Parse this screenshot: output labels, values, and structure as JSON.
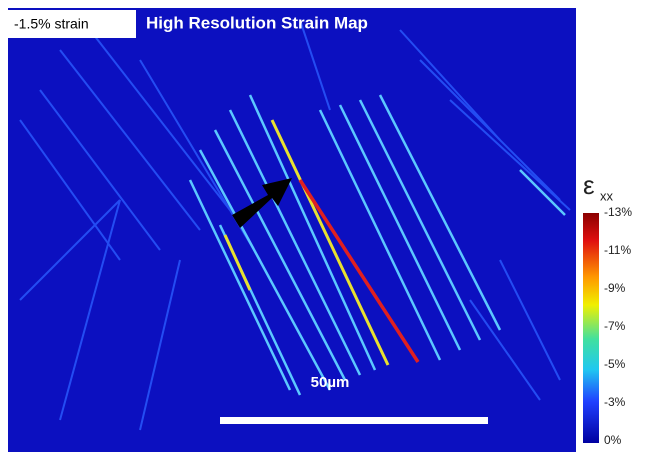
{
  "strain_label": "-1.5% strain",
  "title": "High Resolution Strain Map",
  "colorbar": {
    "symbol": "ε",
    "subscript": "xx",
    "tick_labels": [
      "-13%",
      "-11%",
      "-9%",
      "-7%",
      "-5%",
      "-3%",
      "0%"
    ]
  },
  "scale_bar": {
    "label": "50µm"
  }
}
